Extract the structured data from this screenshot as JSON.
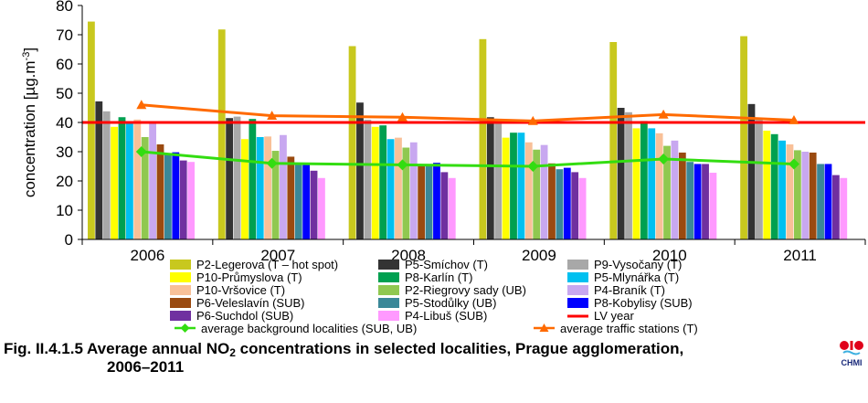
{
  "chart_data": {
    "type": "bar",
    "title": "",
    "xlabel": "",
    "ylabel_main": "concentration [µg.m",
    "ylabel_sup": "-3",
    "ylabel_end": "]",
    "ylim": [
      0,
      80
    ],
    "yticks": [
      0,
      10,
      20,
      30,
      40,
      50,
      60,
      70,
      80
    ],
    "grid": false,
    "legend_position": "bottom",
    "categories": [
      "2006",
      "2007",
      "2008",
      "2009",
      "2010",
      "2011"
    ],
    "series": [
      {
        "name": "P2-Legerova (T – hot spot)",
        "color": "#c8c81e",
        "values": [
          74.5,
          71.8,
          66.1,
          68.5,
          67.5,
          69.5
        ]
      },
      {
        "name": "P5-Smíchov (T)",
        "color": "#333333",
        "values": [
          47.2,
          41.5,
          46.8,
          41.8,
          45.0,
          46.3
        ]
      },
      {
        "name": "P9-Vysočany (T)",
        "color": "#a8a8a8",
        "values": [
          43.8,
          42.0,
          40.9,
          40.5,
          43.5,
          41.0
        ]
      },
      {
        "name": "P10-Průmyslova (T)",
        "color": "#ffff00",
        "values": [
          38.5,
          34.3,
          38.5,
          34.8,
          38.0,
          37.2
        ]
      },
      {
        "name": "P8-Karlín (T)",
        "color": "#00a050",
        "values": [
          41.8,
          41.2,
          39.0,
          36.5,
          40.5,
          36.0
        ]
      },
      {
        "name": "P5-Mlynářka (T)",
        "color": "#00c0f0",
        "values": [
          40.3,
          35.0,
          34.3,
          36.5,
          38.0,
          33.8
        ]
      },
      {
        "name": "P10-Vršovice (T)",
        "color": "#f8c098",
        "values": [
          41.0,
          35.2,
          34.8,
          33.2,
          36.3,
          32.5
        ]
      },
      {
        "name": "P2-Riegrovy sady (UB)",
        "color": "#90c850",
        "values": [
          35.0,
          30.3,
          31.4,
          30.7,
          32.0,
          30.5
        ]
      },
      {
        "name": "P4-Braník (T)",
        "color": "#c8a8f0",
        "values": [
          40.0,
          35.7,
          33.2,
          32.3,
          33.8,
          30.0
        ]
      },
      {
        "name": "P6-Veleslavín (SUB)",
        "color": "#9a4a10",
        "values": [
          32.5,
          28.3,
          25.0,
          26.0,
          29.7,
          29.7
        ]
      },
      {
        "name": "P5-Stodůlky (UB)",
        "color": "#3a8898",
        "values": [
          29.0,
          26.0,
          25.5,
          24.0,
          26.5,
          25.8
        ]
      },
      {
        "name": "P8-Kobylisy (SUB)",
        "color": "#0000ff",
        "values": [
          29.8,
          25.8,
          26.2,
          24.5,
          25.8,
          25.8
        ]
      },
      {
        "name": "P6-Suchdol (SUB)",
        "color": "#7030a0",
        "values": [
          27.0,
          23.5,
          23.0,
          23.0,
          25.8,
          22.0
        ]
      },
      {
        "name": "P4-Libuš (SUB)",
        "color": "#ff99ff",
        "values": [
          26.5,
          21.0,
          21.0,
          21.0,
          22.8,
          21.0
        ]
      }
    ],
    "lines": [
      {
        "name": "average background localities  (SUB, UB)",
        "color": "#33dd11",
        "marker": "diamond",
        "values": [
          30.0,
          26.0,
          25.5,
          25.0,
          27.5,
          25.8
        ]
      },
      {
        "name": "average traffic stations (T)",
        "color": "#ff6a00",
        "marker": "triangle",
        "values": [
          46.0,
          42.3,
          41.8,
          40.5,
          42.7,
          40.8
        ]
      }
    ],
    "limit_line": {
      "name": "LV year",
      "color": "#ff0000",
      "value": 40
    }
  },
  "caption": {
    "prefix": "Fig. II.4.1.5  Average annual NO",
    "subscript": "2",
    "suffix": " concentrations in selected localities, Prague agglomeration,",
    "line2": "2006–2011"
  },
  "logo": {
    "text": "CHMI"
  }
}
